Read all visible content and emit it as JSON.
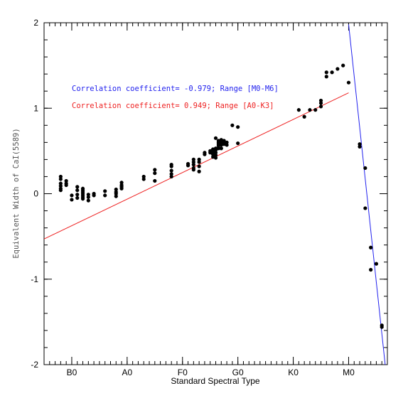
{
  "chart_data": {
    "type": "scatter",
    "xlabel": "Standard Spectral Type",
    "ylabel": "Equivalent Width of CaI(5589)",
    "x_ticks": [
      {
        "value": 10,
        "label": "B0"
      },
      {
        "value": 20,
        "label": "A0"
      },
      {
        "value": 30,
        "label": "F0"
      },
      {
        "value": 40,
        "label": "G0"
      },
      {
        "value": 50,
        "label": "K0"
      },
      {
        "value": 60,
        "label": "M0"
      }
    ],
    "x_minor_step": 1,
    "xlim": [
      5,
      67
    ],
    "ylim": [
      -2,
      2
    ],
    "y_ticks": [
      -2,
      -1,
      0,
      1,
      2
    ],
    "y_minor_step": 0.2,
    "grid": false,
    "series": [
      {
        "color": "#000000",
        "points": [
          [
            8,
            0.2
          ],
          [
            8,
            0.17
          ],
          [
            8,
            0.12
          ],
          [
            8,
            0.09
          ],
          [
            8,
            0.06
          ],
          [
            8,
            0.04
          ],
          [
            9,
            0.15
          ],
          [
            9,
            0.12
          ],
          [
            9,
            0.1
          ],
          [
            10,
            -0.02
          ],
          [
            10,
            -0.07
          ],
          [
            11,
            0.08
          ],
          [
            11,
            0.04
          ],
          [
            11,
            -0.01
          ],
          [
            11,
            -0.05
          ],
          [
            12,
            0.06
          ],
          [
            12,
            0.04
          ],
          [
            12,
            0.02
          ],
          [
            12,
            0.0
          ],
          [
            12,
            -0.02
          ],
          [
            12,
            -0.04
          ],
          [
            12,
            -0.06
          ],
          [
            13,
            -0.01
          ],
          [
            13,
            -0.04
          ],
          [
            13,
            -0.08
          ],
          [
            14,
            0.0
          ],
          [
            14,
            -0.02
          ],
          [
            16,
            0.03
          ],
          [
            16,
            -0.02
          ],
          [
            18,
            0.05
          ],
          [
            18,
            0.02
          ],
          [
            18,
            0.0
          ],
          [
            18,
            -0.03
          ],
          [
            19,
            0.13
          ],
          [
            19,
            0.1
          ],
          [
            19,
            0.08
          ],
          [
            19,
            0.06
          ],
          [
            23,
            0.2
          ],
          [
            23,
            0.17
          ],
          [
            25,
            0.28
          ],
          [
            25,
            0.24
          ],
          [
            25,
            0.15
          ],
          [
            28,
            0.34
          ],
          [
            28,
            0.32
          ],
          [
            28,
            0.27
          ],
          [
            28,
            0.23
          ],
          [
            28,
            0.2
          ],
          [
            31,
            0.35
          ],
          [
            31,
            0.33
          ],
          [
            32,
            0.4
          ],
          [
            32,
            0.37
          ],
          [
            32,
            0.34
          ],
          [
            32,
            0.3
          ],
          [
            32,
            0.28
          ],
          [
            33,
            0.4
          ],
          [
            33,
            0.37
          ],
          [
            33,
            0.32
          ],
          [
            33,
            0.26
          ],
          [
            34,
            0.48
          ],
          [
            34,
            0.46
          ],
          [
            35,
            0.5
          ],
          [
            35,
            0.48
          ],
          [
            35.5,
            0.52
          ],
          [
            35.5,
            0.49
          ],
          [
            35.5,
            0.46
          ],
          [
            35.5,
            0.43
          ],
          [
            36,
            0.65
          ],
          [
            36,
            0.53
          ],
          [
            36,
            0.51
          ],
          [
            36,
            0.48
          ],
          [
            36,
            0.45
          ],
          [
            36,
            0.42
          ],
          [
            36.5,
            0.62
          ],
          [
            36.5,
            0.6
          ],
          [
            36.5,
            0.58
          ],
          [
            36.5,
            0.56
          ],
          [
            36.5,
            0.53
          ],
          [
            37,
            0.63
          ],
          [
            37,
            0.6
          ],
          [
            37,
            0.57
          ],
          [
            37,
            0.53
          ],
          [
            37.5,
            0.62
          ],
          [
            37.5,
            0.59
          ],
          [
            37.5,
            0.58
          ],
          [
            38,
            0.6
          ],
          [
            38,
            0.57
          ],
          [
            39,
            0.8
          ],
          [
            40,
            0.78
          ],
          [
            40,
            0.59
          ],
          [
            51,
            0.98
          ],
          [
            52,
            0.9
          ],
          [
            53,
            0.98
          ],
          [
            54,
            0.98
          ],
          [
            55,
            1.09
          ],
          [
            55,
            1.06
          ],
          [
            55,
            1.02
          ],
          [
            56,
            1.42
          ],
          [
            56,
            1.37
          ],
          [
            57,
            1.42
          ],
          [
            58,
            1.46
          ],
          [
            59,
            1.5
          ],
          [
            60,
            1.3
          ],
          [
            62,
            0.58
          ],
          [
            62,
            0.55
          ],
          [
            63,
            0.3
          ],
          [
            63,
            -0.17
          ],
          [
            64,
            -0.63
          ],
          [
            64,
            -0.89
          ],
          [
            65,
            -0.82
          ],
          [
            66,
            -1.54
          ],
          [
            66,
            -1.56
          ]
        ]
      }
    ],
    "fits": [
      {
        "label": "Correlation coefficient= -0.979; Range [M0-M6]",
        "color": "#2222ee",
        "x": [
          60,
          66.6
        ],
        "y": [
          1.98,
          -2.0
        ]
      },
      {
        "label": "Correlation coefficient= 0.949; Range [A0-K3]",
        "color": "#ee2222",
        "x": [
          5,
          60
        ],
        "y": [
          -0.53,
          1.18
        ]
      }
    ]
  }
}
